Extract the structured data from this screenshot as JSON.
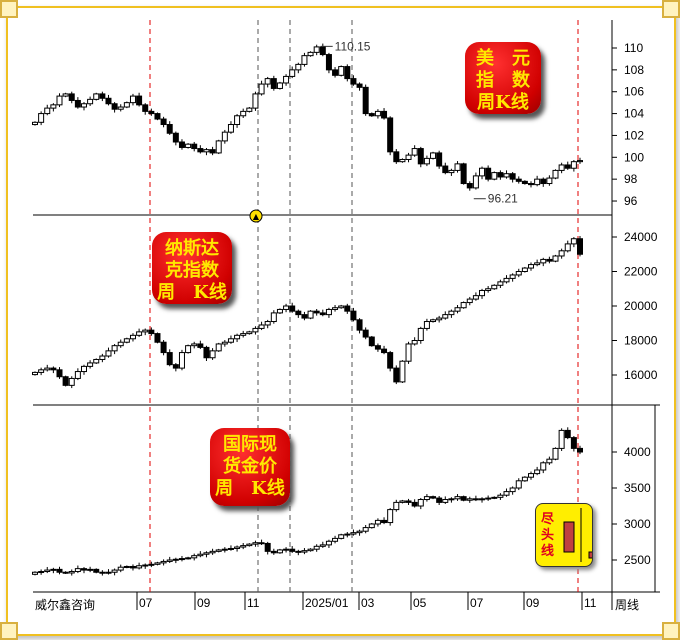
{
  "footer": {
    "brand": "威尔鑫咨询",
    "period": "周线",
    "date_ticks": [
      "07",
      "09",
      "11",
      "2025/01",
      "03",
      "05",
      "07",
      "09",
      "11"
    ]
  },
  "badges": {
    "dxy": [
      "美　元",
      "指　数",
      "周K线"
    ],
    "nasdaq": [
      "纳斯达",
      "克指数",
      "周　K线"
    ],
    "gold": [
      "国际现",
      "货金价",
      "周　K线"
    ],
    "end_line": "尽头线"
  },
  "colors": {
    "frame": "#f0c020",
    "badge": "#e00000",
    "badge_text": "#ffe800",
    "marker_red": "#e00000",
    "marker_gray": "#555555"
  },
  "chart_data": [
    {
      "type": "candlestick",
      "title": "美元指数周K线",
      "ylim": [
        95,
        112
      ],
      "yticks": [
        96,
        98,
        100,
        102,
        104,
        106,
        108,
        110
      ],
      "annotations": [
        {
          "label": "110.15",
          "value": 110.15
        },
        {
          "label": "96.21",
          "value": 96.21
        }
      ],
      "closes": [
        103.2,
        104.0,
        104.5,
        104.8,
        105.6,
        105.8,
        105.2,
        104.6,
        104.9,
        105.3,
        105.8,
        105.4,
        104.9,
        104.4,
        104.6,
        105.0,
        105.6,
        104.8,
        104.2,
        104.0,
        103.5,
        103.0,
        102.2,
        101.4,
        100.9,
        101.2,
        100.8,
        100.5,
        100.7,
        100.4,
        101.5,
        102.3,
        103.0,
        103.8,
        104.2,
        104.5,
        105.8,
        106.7,
        107.2,
        106.3,
        106.8,
        107.4,
        108.0,
        108.5,
        109.3,
        109.6,
        110.1,
        109.4,
        108.0,
        107.5,
        108.3,
        107.2,
        106.7,
        106.4,
        104.0,
        103.8,
        104.2,
        103.6,
        100.5,
        99.6,
        99.8,
        100.2,
        100.8,
        99.4,
        99.9,
        100.4,
        99.2,
        98.6,
        98.8,
        99.4,
        97.6,
        97.2,
        98.3,
        99.0,
        98.0,
        98.6,
        98.2,
        98.5,
        98.0,
        97.8,
        97.6,
        97.5,
        98.0,
        97.6,
        98.1,
        98.8,
        99.3,
        99.0,
        99.6,
        99.7
      ]
    },
    {
      "type": "candlestick",
      "title": "纳斯达克指数周K线",
      "ylim": [
        14500,
        25000
      ],
      "yticks": [
        16000,
        18000,
        20000,
        22000,
        24000
      ],
      "closes": [
        16150,
        16300,
        16400,
        16300,
        15900,
        15400,
        15800,
        16200,
        16500,
        16700,
        16900,
        17100,
        17400,
        17700,
        17900,
        18100,
        18300,
        18500,
        18600,
        18400,
        17900,
        17300,
        16600,
        16400,
        17300,
        17700,
        17800,
        17600,
        17000,
        17400,
        17800,
        17900,
        18100,
        18300,
        18400,
        18500,
        18700,
        18900,
        19100,
        19600,
        19800,
        20000,
        19700,
        19500,
        19300,
        19700,
        19600,
        19500,
        19800,
        19900,
        20000,
        19700,
        19200,
        18600,
        18200,
        17700,
        17500,
        17300,
        16400,
        15600,
        16800,
        17800,
        18000,
        18700,
        19100,
        19200,
        19300,
        19500,
        19700,
        19900,
        20200,
        20400,
        20600,
        20900,
        21000,
        21200,
        21400,
        21600,
        21800,
        22000,
        22200,
        22400,
        22500,
        22700,
        22600,
        22900,
        23200,
        23600,
        23900,
        23000
      ]
    },
    {
      "type": "candlestick",
      "title": "国际现货金价周K线",
      "ylim": [
        2250,
        4650
      ],
      "yticks": [
        2500,
        3000,
        3500,
        4000
      ],
      "closes": [
        2330,
        2340,
        2360,
        2370,
        2330,
        2320,
        2340,
        2380,
        2360,
        2370,
        2330,
        2320,
        2330,
        2360,
        2400,
        2410,
        2390,
        2420,
        2430,
        2440,
        2460,
        2480,
        2500,
        2510,
        2520,
        2530,
        2560,
        2580,
        2600,
        2620,
        2640,
        2650,
        2660,
        2680,
        2700,
        2720,
        2740,
        2730,
        2620,
        2600,
        2640,
        2650,
        2620,
        2610,
        2630,
        2650,
        2690,
        2710,
        2760,
        2800,
        2850,
        2860,
        2880,
        2900,
        2950,
        3000,
        3050,
        3020,
        3200,
        3300,
        3320,
        3300,
        3250,
        3340,
        3380,
        3360,
        3300,
        3340,
        3350,
        3380,
        3330,
        3350,
        3340,
        3350,
        3360,
        3370,
        3400,
        3450,
        3500,
        3600,
        3650,
        3700,
        3750,
        3850,
        3900,
        4050,
        4300,
        4200,
        4050,
        4000
      ]
    }
  ]
}
